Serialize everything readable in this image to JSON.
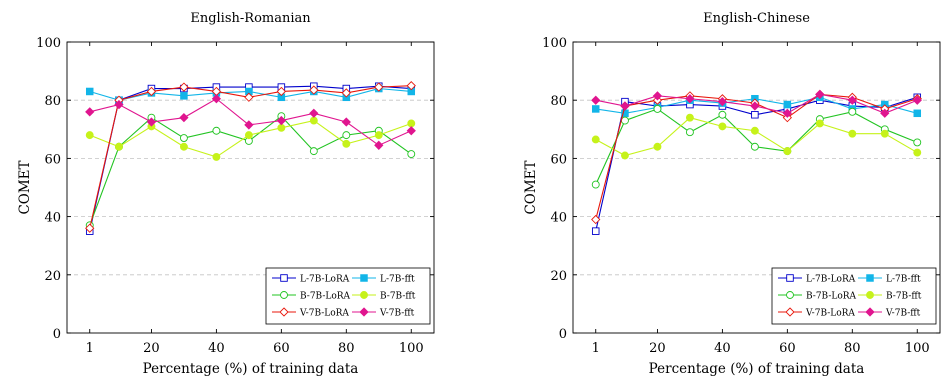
{
  "figure": {
    "y_ticks": [
      "0",
      "20",
      "40",
      "60",
      "80",
      "100"
    ]
  },
  "chart_data": [
    {
      "type": "line",
      "title": "English-Romanian",
      "xlabel": "Percentage (%) of training data",
      "ylabel": "COMET",
      "x": [
        1,
        10,
        20,
        30,
        40,
        50,
        60,
        70,
        80,
        90,
        100
      ],
      "x_tick_labels": [
        "1",
        "20",
        "40",
        "60",
        "80",
        "100"
      ],
      "x_tick_values": [
        1,
        20,
        40,
        60,
        80,
        100
      ],
      "ylim": [
        0,
        100
      ],
      "grid": "horizontal-dashed",
      "legend_position": "bottom-right",
      "series": [
        {
          "name": "L-7B-LoRA",
          "color": "#0000cc",
          "marker": "square-open",
          "values": [
            35,
            80,
            84,
            84,
            84.5,
            84.5,
            84.5,
            84.8,
            84,
            84.8,
            84
          ]
        },
        {
          "name": "L-7B-fft",
          "color": "#12b5e8",
          "marker": "square-filled",
          "values": [
            83,
            80,
            82.5,
            81.5,
            82.5,
            83,
            81,
            83,
            81,
            84,
            83
          ]
        },
        {
          "name": "B-7B-LoRA",
          "color": "#22c422",
          "marker": "circle-open",
          "values": [
            37,
            64,
            74,
            67,
            69.5,
            66,
            74.5,
            62.5,
            68,
            69.5,
            61.5
          ]
        },
        {
          "name": "B-7B-fft",
          "color": "#c6f21a",
          "marker": "circle-filled",
          "values": [
            68,
            64,
            71,
            64,
            60.5,
            68,
            70.5,
            73,
            65,
            68,
            72
          ]
        },
        {
          "name": "V-7B-LoRA",
          "color": "#e8170b",
          "marker": "diamond-open",
          "values": [
            36,
            80,
            83,
            84.5,
            83,
            81,
            83,
            83.5,
            82.5,
            84.5,
            85
          ]
        },
        {
          "name": "V-7B-fft",
          "color": "#e0158f",
          "marker": "diamond-filled",
          "values": [
            76,
            78.5,
            72.5,
            74,
            80.5,
            71.5,
            73,
            75.5,
            72.5,
            64.5,
            69.5
          ]
        }
      ]
    },
    {
      "type": "line",
      "title": "English-Chinese",
      "xlabel": "Percentage (%) of training data",
      "ylabel": "COMET",
      "x": [
        1,
        10,
        20,
        30,
        40,
        50,
        60,
        70,
        80,
        90,
        100
      ],
      "x_tick_labels": [
        "1",
        "20",
        "40",
        "60",
        "80",
        "100"
      ],
      "x_tick_values": [
        1,
        20,
        40,
        60,
        80,
        100
      ],
      "ylim": [
        0,
        100
      ],
      "grid": "horizontal-dashed",
      "legend_position": "bottom-right",
      "series": [
        {
          "name": "L-7B-LoRA",
          "color": "#0000cc",
          "marker": "square-open",
          "values": [
            35,
            79.5,
            78,
            78.5,
            78,
            75,
            77,
            80,
            78,
            77.5,
            81
          ]
        },
        {
          "name": "L-7B-fft",
          "color": "#12b5e8",
          "marker": "square-filled",
          "values": [
            77,
            75.5,
            77.5,
            80,
            79,
            80.5,
            78.5,
            81,
            77,
            78.5,
            75.5
          ]
        },
        {
          "name": "B-7B-LoRA",
          "color": "#22c422",
          "marker": "circle-open",
          "values": [
            51,
            73,
            77,
            69,
            75,
            64,
            62.5,
            73.5,
            76,
            70,
            65.5
          ]
        },
        {
          "name": "B-7B-fft",
          "color": "#c6f21a",
          "marker": "circle-filled",
          "values": [
            66.5,
            61,
            64,
            74,
            71,
            69.5,
            62.5,
            72,
            68.5,
            68.5,
            62
          ]
        },
        {
          "name": "V-7B-LoRA",
          "color": "#e8170b",
          "marker": "diamond-open",
          "values": [
            39,
            78,
            80,
            81.5,
            80.5,
            79,
            74,
            82,
            81,
            77,
            80.5
          ]
        },
        {
          "name": "V-7B-fft",
          "color": "#e0158f",
          "marker": "diamond-filled",
          "values": [
            80,
            78,
            81.5,
            80.5,
            79.5,
            78,
            75.5,
            82,
            80,
            75.5,
            80
          ]
        }
      ]
    }
  ]
}
